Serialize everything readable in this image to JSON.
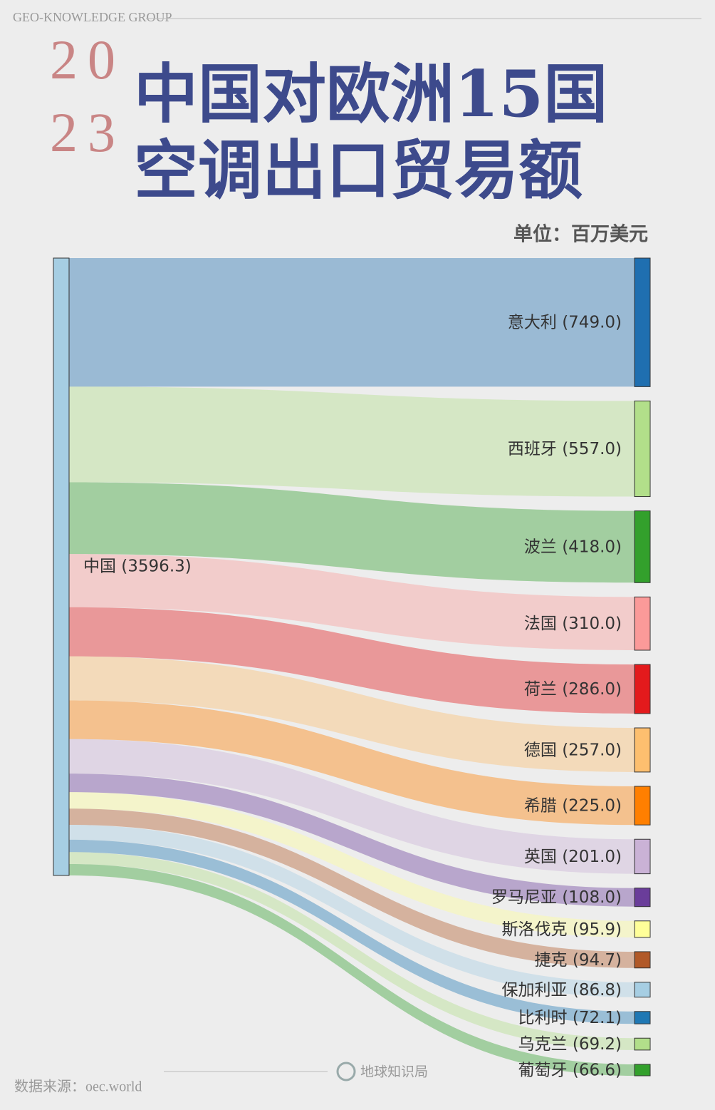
{
  "chart_data": {
    "type": "sankey",
    "brand": "GEO-KNOWLEDGE GROUP",
    "year": [
      "20",
      "23"
    ],
    "title": [
      "中国对欧洲15国",
      "空调出口贸易额"
    ],
    "unit": "单位：百万美元",
    "source_note": "数据来源：oec.world",
    "watermark": "地球知识局",
    "source": {
      "label": "中国 (3596.3)",
      "value": 3596.3,
      "color": "#a6cee3"
    },
    "targets": [
      {
        "label": "意大利 (749.0)",
        "value": 749.0,
        "color": "#1f6fb0"
      },
      {
        "label": "西班牙 (557.0)",
        "value": 557.0,
        "color": "#b2df8a"
      },
      {
        "label": "波兰 (418.0)",
        "value": 418.0,
        "color": "#33a02c"
      },
      {
        "label": "法国 (310.0)",
        "value": 310.0,
        "color": "#fb9a99"
      },
      {
        "label": "荷兰 (286.0)",
        "value": 286.0,
        "color": "#e31a1c"
      },
      {
        "label": "德国 (257.0)",
        "value": 257.0,
        "color": "#fdbf6f"
      },
      {
        "label": "希腊 (225.0)",
        "value": 225.0,
        "color": "#ff7f00"
      },
      {
        "label": "英国 (201.0)",
        "value": 201.0,
        "color": "#cab2d6"
      },
      {
        "label": "罗马尼亚 (108.0)",
        "value": 108.0,
        "color": "#6a3d9a"
      },
      {
        "label": "斯洛伐克 (95.9)",
        "value": 95.9,
        "color": "#ffff99"
      },
      {
        "label": "捷克 (94.7)",
        "value": 94.7,
        "color": "#b15928"
      },
      {
        "label": "保加利亚 (86.8)",
        "value": 86.8,
        "color": "#a6cee3"
      },
      {
        "label": "比利时 (72.1)",
        "value": 72.1,
        "color": "#1f78b4"
      },
      {
        "label": "乌克兰 (69.2)",
        "value": 69.2,
        "color": "#b2df8a"
      },
      {
        "label": "葡萄牙 (66.6)",
        "value": 66.6,
        "color": "#33a02c"
      }
    ]
  }
}
